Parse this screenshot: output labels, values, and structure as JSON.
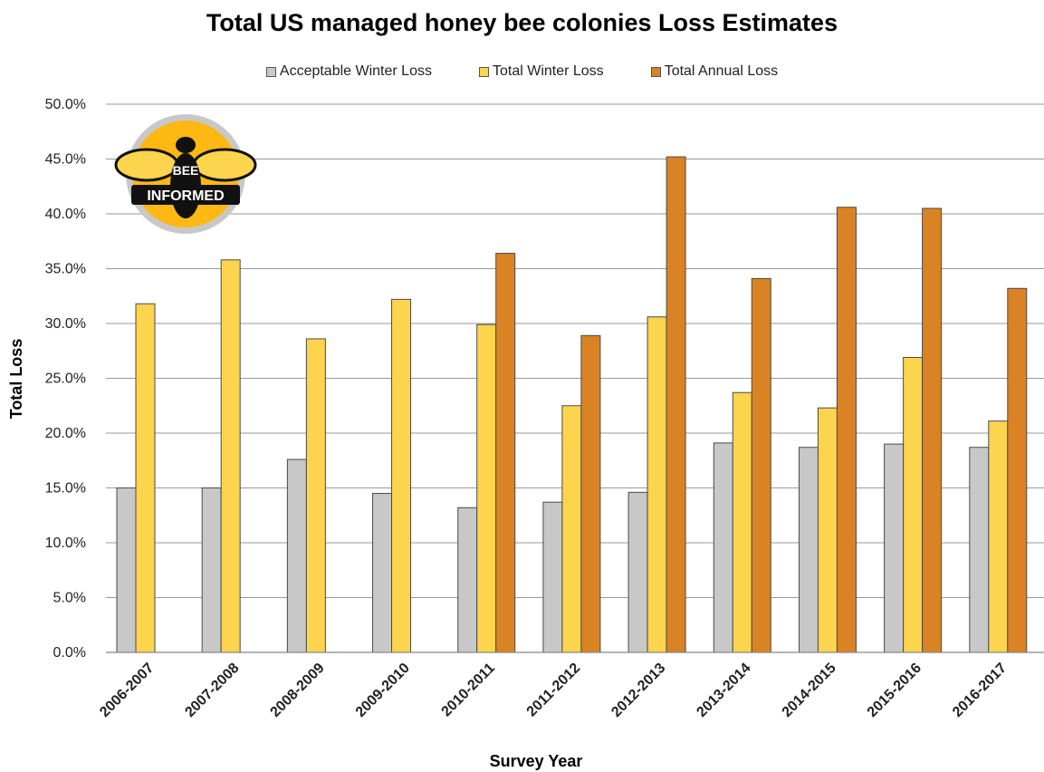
{
  "chart_data": {
    "type": "bar",
    "title": "Total US managed honey bee colonies Loss Estimates",
    "xlabel": "Survey Year",
    "ylabel": "Total Loss",
    "ylim": [
      0,
      50
    ],
    "yticks": [
      "0.0%",
      "5.0%",
      "10.0%",
      "15.0%",
      "20.0%",
      "25.0%",
      "30.0%",
      "35.0%",
      "40.0%",
      "45.0%",
      "50.0%"
    ],
    "grid": true,
    "legend_position": "top",
    "categories": [
      "2006-2007",
      "2007-2008",
      "2008-2009",
      "2009-2010",
      "2010-2011",
      "2011-2012",
      "2012-2013",
      "2013-2014",
      "2014-2015",
      "2015-2016",
      "2016-2017"
    ],
    "series": [
      {
        "name": "Acceptable Winter Loss",
        "color": "#c8c8c8",
        "values": [
          15.0,
          15.0,
          17.6,
          14.5,
          13.2,
          13.7,
          14.6,
          19.1,
          18.7,
          19.0,
          18.7
        ]
      },
      {
        "name": "Total Winter Loss",
        "color": "#fdd44e",
        "values": [
          31.8,
          35.8,
          28.6,
          32.2,
          29.9,
          22.5,
          30.6,
          23.7,
          22.3,
          26.9,
          21.1
        ]
      },
      {
        "name": "Total Annual Loss",
        "color": "#d98324",
        "values": [
          null,
          null,
          null,
          null,
          36.4,
          28.9,
          45.2,
          34.1,
          40.6,
          40.5,
          33.2
        ]
      }
    ]
  },
  "logo": {
    "line1": "BEE",
    "line2": "INFORMED",
    "ring_color": "#c8c8c8",
    "fill_color": "#fdb813"
  }
}
